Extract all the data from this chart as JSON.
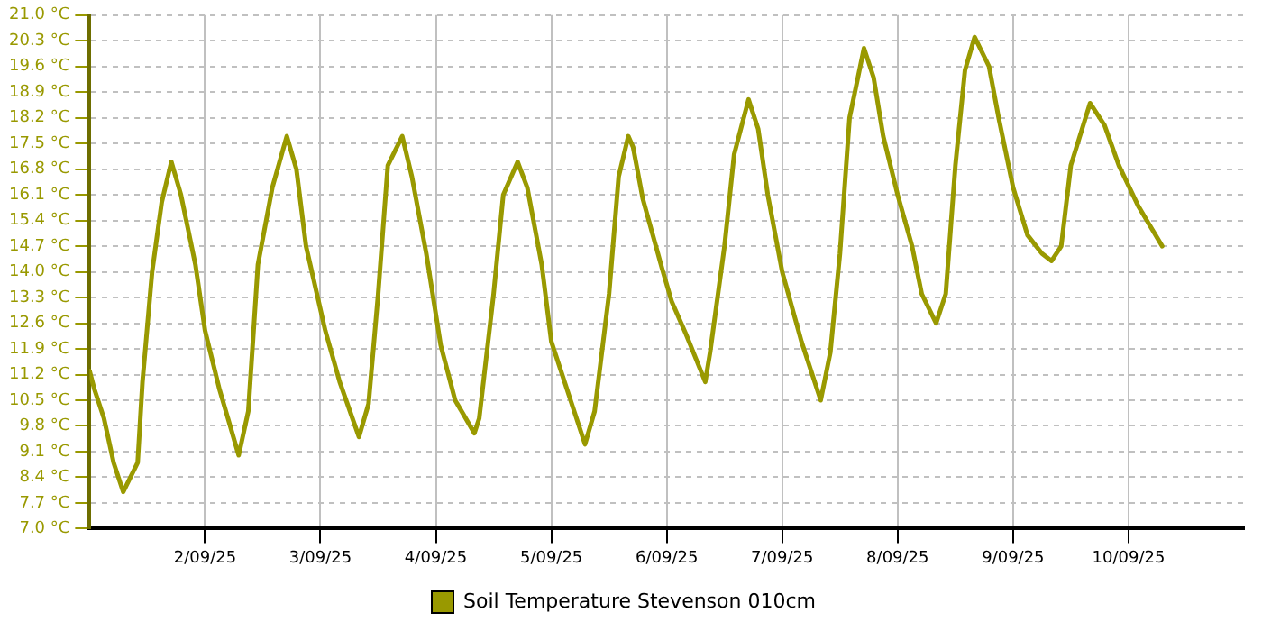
{
  "chart_data": {
    "type": "line",
    "x": [
      "--09-01T00:00",
      "--09-01T01:00",
      "--09-01T03:00",
      "--09-01T05:00",
      "--09-01T07:00",
      "--09-01T10:00",
      "--09-01T11:00",
      "--09-01T13:00",
      "--09-01T15:00",
      "--09-01T17:00",
      "--09-01T19:00",
      "--09-01T22:00",
      "--09-02T00:00",
      "--09-02T03:00",
      "--09-02T07:00",
      "--09-02T09:00",
      "--09-02T11:00",
      "--09-02T14:00",
      "--09-02T17:00",
      "--09-02T19:00",
      "--09-02T21:00",
      "--09-03T01:00",
      "--09-03T04:00",
      "--09-03T08:00",
      "--09-03T10:00",
      "--09-03T12:00",
      "--09-03T14:00",
      "--09-03T17:00",
      "--09-03T19:00",
      "--09-03T22:00",
      "--09-04T01:00",
      "--09-04T04:00",
      "--09-04T08:00",
      "--09-04T09:00",
      "--09-04T12:00",
      "--09-04T14:00",
      "--09-04T17:00",
      "--09-04T19:00",
      "--09-04T22:00",
      "--09-05T00:00",
      "--09-05T04:00",
      "--09-05T07:00",
      "--09-05T09:00",
      "--09-05T12:00",
      "--09-05T14:00",
      "--09-05T16:00",
      "--09-05T17:00",
      "--09-05T19:00",
      "--09-05T23:00",
      "--09-06T01:00",
      "--09-06T04:00",
      "--09-06T08:00",
      "--09-06T09:00",
      "--09-06T12:00",
      "--09-06T14:00",
      "--09-06T17:00",
      "--09-06T19:00",
      "--09-06T21:00",
      "--09-07T00:00",
      "--09-07T04:00",
      "--09-07T08:00",
      "--09-07T10:00",
      "--09-07T12:00",
      "--09-07T14:00",
      "--09-07T17:00",
      "--09-07T19:00",
      "--09-07T21:00",
      "--09-08T00:00",
      "--09-08T03:00",
      "--09-08T05:00",
      "--09-08T08:00",
      "--09-08T10:00",
      "--09-08T12:00",
      "--09-08T14:00",
      "--09-08T16:00",
      "--09-08T19:00",
      "--09-08T21:00",
      "--09-09T00:00",
      "--09-09T03:00",
      "--09-09T06:00",
      "--09-09T08:00",
      "--09-09T10:00",
      "--09-09T12:00",
      "--09-09T16:00",
      "--09-09T19:00",
      "--09-09T22:00",
      "--09-10T02:00",
      "--09-10T07:00"
    ],
    "series": [
      {
        "name": "Soil Temperature Stevenson 010cm",
        "color": "#999900",
        "values": [
          11.3,
          10.8,
          10.0,
          8.8,
          8.0,
          8.8,
          11.0,
          14.0,
          15.9,
          17.0,
          16.1,
          14.2,
          12.4,
          10.8,
          9.0,
          10.2,
          14.2,
          16.3,
          17.7,
          16.8,
          14.7,
          12.4,
          11.0,
          9.5,
          10.4,
          13.4,
          16.9,
          17.7,
          16.6,
          14.5,
          12.0,
          10.5,
          9.6,
          10.0,
          13.4,
          16.1,
          17.0,
          16.3,
          14.2,
          12.1,
          10.5,
          9.3,
          10.2,
          13.4,
          16.6,
          17.7,
          17.4,
          16.0,
          14.1,
          13.2,
          12.3,
          11.0,
          11.8,
          14.7,
          17.2,
          18.7,
          17.9,
          16.1,
          14.0,
          12.1,
          10.5,
          11.8,
          14.5,
          18.2,
          20.1,
          19.3,
          17.7,
          16.1,
          14.7,
          13.4,
          12.6,
          13.4,
          16.9,
          19.5,
          20.4,
          19.6,
          18.2,
          16.3,
          15.0,
          14.5,
          14.3,
          14.7,
          16.9,
          18.6,
          18.0,
          16.9,
          15.8,
          14.7
        ]
      }
    ],
    "xlim": [
      "--09-01",
      "--09-11"
    ],
    "xticks": [
      {
        "value": "--09-02",
        "label": "2/09/25"
      },
      {
        "value": "--09-03",
        "label": "3/09/25"
      },
      {
        "value": "--09-04",
        "label": "4/09/25"
      },
      {
        "value": "--09-05",
        "label": "5/09/25"
      },
      {
        "value": "--09-06",
        "label": "6/09/25"
      },
      {
        "value": "--09-07",
        "label": "7/09/25"
      },
      {
        "value": "--09-08",
        "label": "8/09/25"
      },
      {
        "value": "--09-09",
        "label": "9/09/25"
      },
      {
        "value": "--09-10",
        "label": "10/09/25"
      }
    ],
    "ylim": [
      7.0,
      21.0
    ],
    "yticks": [
      {
        "value": 7.0,
        "label": "7.0 °C"
      },
      {
        "value": 7.7,
        "label": "7.7 °C"
      },
      {
        "value": 8.4,
        "label": "8.4 °C"
      },
      {
        "value": 9.1,
        "label": "9.1 °C"
      },
      {
        "value": 9.8,
        "label": "9.8 °C"
      },
      {
        "value": 10.5,
        "label": "10.5 °C"
      },
      {
        "value": 11.2,
        "label": "11.2 °C"
      },
      {
        "value": 11.9,
        "label": "11.9 °C"
      },
      {
        "value": 12.6,
        "label": "12.6 °C"
      },
      {
        "value": 13.3,
        "label": "13.3 °C"
      },
      {
        "value": 14.0,
        "label": "14.0 °C"
      },
      {
        "value": 14.7,
        "label": "14.7 °C"
      },
      {
        "value": 15.4,
        "label": "15.4 °C"
      },
      {
        "value": 16.1,
        "label": "16.1 °C"
      },
      {
        "value": 16.8,
        "label": "16.8 °C"
      },
      {
        "value": 17.5,
        "label": "17.5 °C"
      },
      {
        "value": 18.2,
        "label": "18.2 °C"
      },
      {
        "value": 18.9,
        "label": "18.9 °C"
      },
      {
        "value": 19.6,
        "label": "19.6 °C"
      },
      {
        "value": 20.3,
        "label": "20.3 °C"
      },
      {
        "value": 21.0,
        "label": "21.0 °C"
      }
    ],
    "grid": true,
    "legend": "bottom",
    "marker": "none",
    "line_style": "solid"
  }
}
